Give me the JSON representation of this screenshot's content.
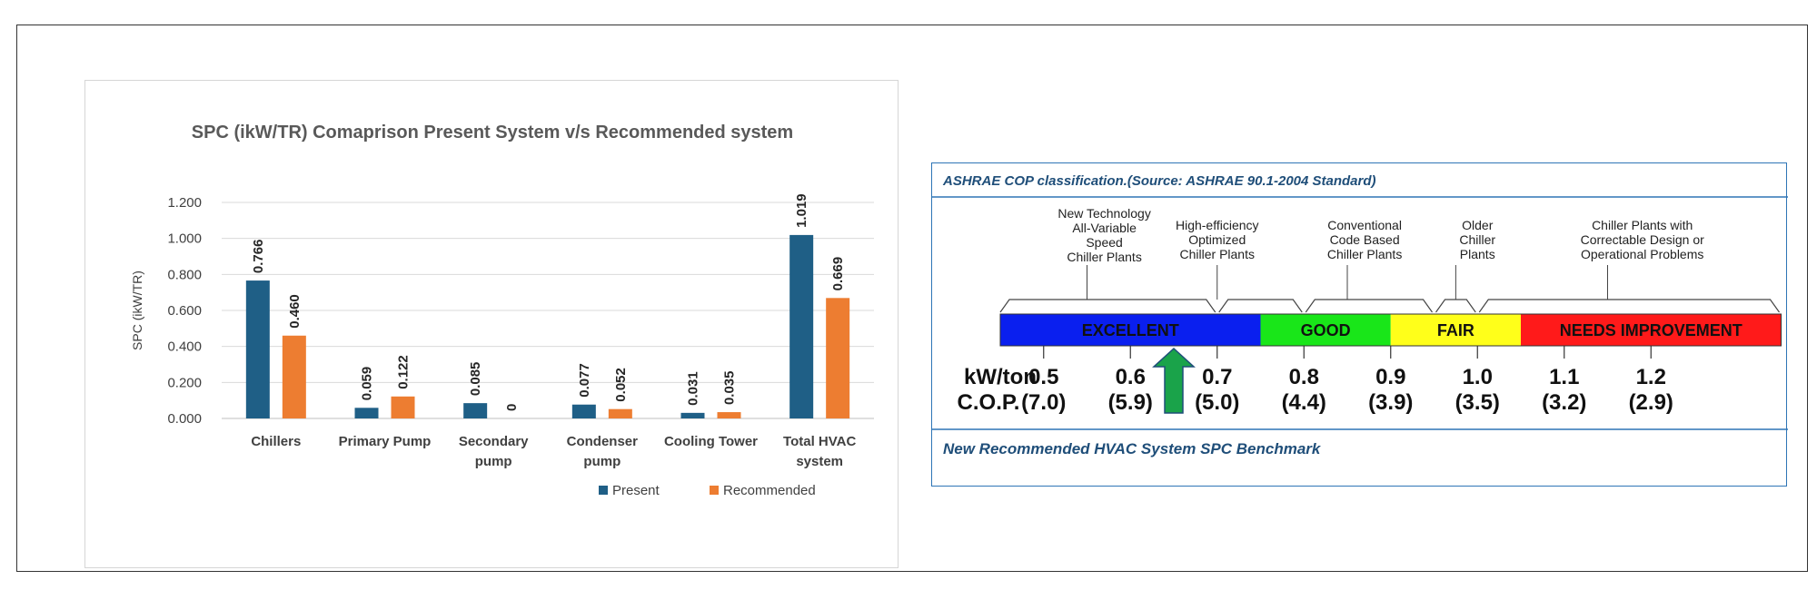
{
  "chart_data": {
    "type": "bar",
    "title": "SPC (ikW/TR) Comaprison Present System v/s Recommended system",
    "ylabel": "SPC (ikW/TR)",
    "ylim": [
      0,
      1.2
    ],
    "yticks": [
      "0.000",
      "0.200",
      "0.400",
      "0.600",
      "0.800",
      "1.000",
      "1.200"
    ],
    "categories": [
      [
        "Chillers"
      ],
      [
        "Primary Pump"
      ],
      [
        "Secondary",
        "pump"
      ],
      [
        "Condenser",
        "pump"
      ],
      [
        "Cooling Tower"
      ],
      [
        "Total HVAC",
        "system"
      ]
    ],
    "series": [
      {
        "name": "Present",
        "color": "#1f5f86",
        "values": [
          0.766,
          0.059,
          0.085,
          0.077,
          0.031,
          1.019
        ],
        "labels": [
          "0.766",
          "0.059",
          "0.085",
          "0.077",
          "0.031",
          "1.019"
        ]
      },
      {
        "name": "Recommended",
        "color": "#ed7d31",
        "values": [
          0.46,
          0.122,
          0,
          0.052,
          0.035,
          0.669
        ],
        "labels": [
          "0.460",
          "0.122",
          "0",
          "0.052",
          "0.035",
          "0.669"
        ]
      }
    ],
    "grid": true,
    "legend": "bottom"
  },
  "ashrae": {
    "header": "ASHRAE COP classification.(Source: ASHRAE 90.1-2004 Standard)",
    "footer": "New Recommended HVAC System SPC Benchmark",
    "descriptions": [
      [
        "New Technology",
        "All-Variable",
        "Speed",
        "Chiller Plants"
      ],
      [
        "High-efficiency",
        "Optimized",
        "Chiller Plants"
      ],
      [
        "Conventional",
        "Code Based",
        "Chiller Plants"
      ],
      [
        "Older",
        "Chiller",
        "Plants"
      ],
      [
        "Chiller Plants with",
        "Correctable Design or",
        "Operational Problems"
      ]
    ],
    "bands": [
      {
        "label": "EXCELLENT",
        "color": "#0a1fef"
      },
      {
        "label": "GOOD",
        "color": "#19e619"
      },
      {
        "label": "FAIR",
        "color": "#ffff1a"
      },
      {
        "label": "NEEDS IMPROVEMENT",
        "color": "#ff1a1a"
      }
    ],
    "kw_label": "kW/ton",
    "cop_label": "C.O.P.",
    "kw_values": [
      "0.5",
      "0.6",
      "0.7",
      "0.8",
      "0.9",
      "1.0",
      "1.1",
      "1.2"
    ],
    "cop_values": [
      "(7.0)",
      "(5.9)",
      "(5.0)",
      "(4.4)",
      "(3.9)",
      "(3.5)",
      "(3.2)",
      "(2.9)"
    ],
    "arrow_color": "#1aa34a"
  }
}
